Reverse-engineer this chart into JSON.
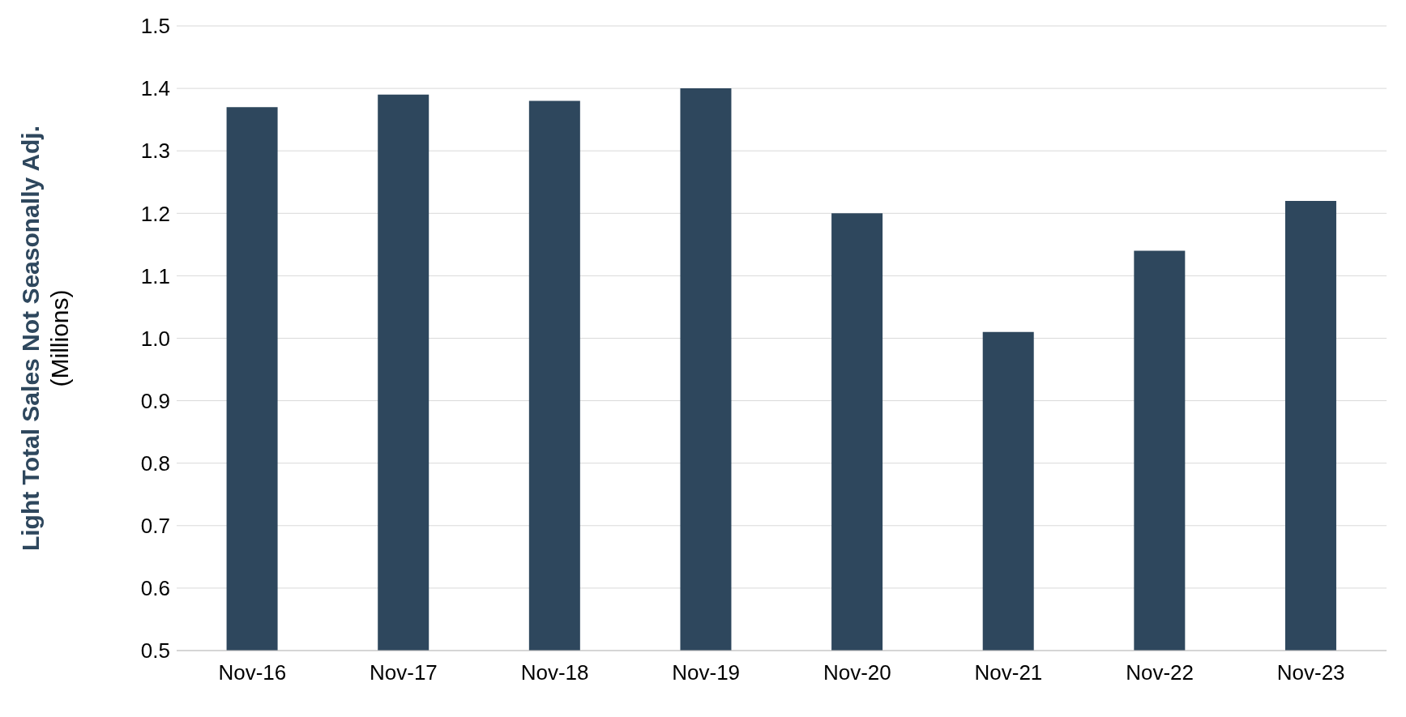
{
  "chart_data": {
    "type": "bar",
    "ylabel": "Light Total Sales Not Seasonally Adj.\n(Millions)",
    "categories": [
      "Nov-16",
      "Nov-17",
      "Nov-18",
      "Nov-19",
      "Nov-20",
      "Nov-21",
      "Nov-22",
      "Nov-23"
    ],
    "values": [
      1.37,
      1.39,
      1.38,
      1.4,
      1.2,
      1.01,
      1.14,
      1.22
    ],
    "color": "#2e475d",
    "ylim": [
      0.5,
      1.5
    ],
    "yticks": [
      {
        "value": 0.5,
        "label": "0.5"
      },
      {
        "value": 0.6,
        "label": "0.6"
      },
      {
        "value": 0.7,
        "label": "0.7"
      },
      {
        "value": 0.8,
        "label": "0.8"
      },
      {
        "value": 0.9,
        "label": "0.9"
      },
      {
        "value": 1.0,
        "label": "1.0"
      },
      {
        "value": 1.1,
        "label": "1.1"
      },
      {
        "value": 1.2,
        "label": "1.2"
      },
      {
        "value": 1.3,
        "label": "1.3"
      },
      {
        "value": 1.4,
        "label": "1.4"
      },
      {
        "value": 1.5,
        "label": "1.5"
      }
    ],
    "grid": "y"
  }
}
